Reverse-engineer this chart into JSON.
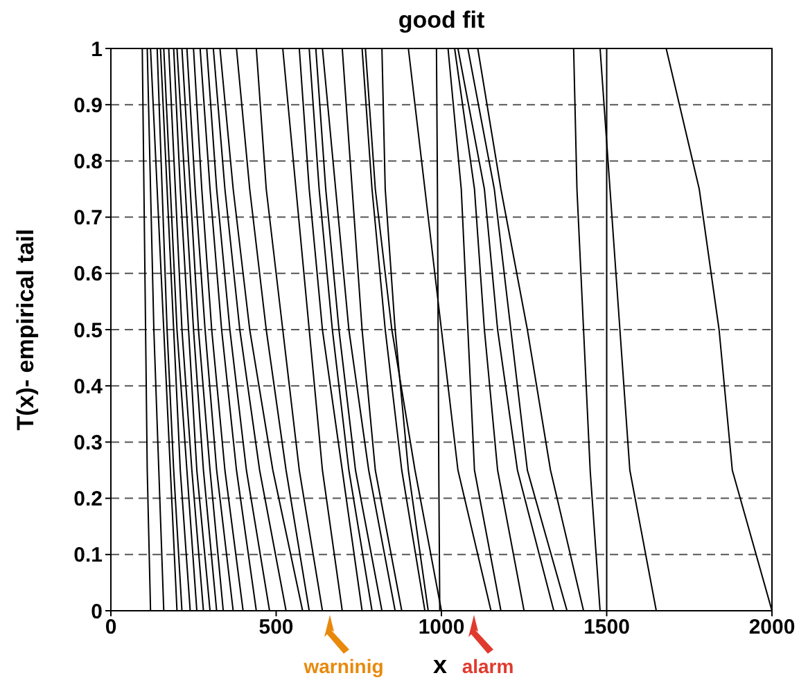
{
  "chart_data": {
    "type": "line",
    "title": "good fit",
    "xlabel": "x",
    "ylabel": "T(x)- empirical tail",
    "xlim": [
      0,
      2000
    ],
    "xticks": [
      0,
      500,
      1000,
      1500,
      2000
    ],
    "ylim": [
      0,
      1
    ],
    "yticks": [
      0,
      0.1,
      0.2,
      0.3,
      0.4,
      0.5,
      0.6,
      0.7,
      0.8,
      0.9,
      1
    ],
    "grid": "y",
    "line_style": "solid",
    "marker": "none",
    "annotations": [
      "warninig",
      "alarm"
    ],
    "series": [
      {
        "color": "#000000",
        "x": [
          95,
          100,
          105,
          110,
          120
        ],
        "values": [
          1,
          0.75,
          0.5,
          0.25,
          0
        ]
      },
      {
        "color": "#000000",
        "x": [
          110,
          120,
          130,
          145,
          160
        ],
        "values": [
          1,
          0.75,
          0.5,
          0.25,
          0
        ]
      },
      {
        "color": "#000000",
        "x": [
          120,
          140,
          160,
          180,
          200
        ],
        "values": [
          1,
          0.75,
          0.5,
          0.25,
          0
        ]
      },
      {
        "color": "#000000",
        "x": [
          140,
          155,
          170,
          190,
          215
        ],
        "values": [
          1,
          0.75,
          0.5,
          0.25,
          0
        ]
      },
      {
        "color": "#000000",
        "x": [
          150,
          170,
          190,
          210,
          240
        ],
        "values": [
          1,
          0.75,
          0.5,
          0.25,
          0
        ]
      },
      {
        "color": "#000000",
        "x": [
          160,
          180,
          200,
          230,
          260
        ],
        "values": [
          1,
          0.75,
          0.5,
          0.25,
          0
        ]
      },
      {
        "color": "#000000",
        "x": [
          175,
          195,
          215,
          245,
          280
        ],
        "values": [
          1,
          0.75,
          0.5,
          0.25,
          0
        ]
      },
      {
        "color": "#000000",
        "x": [
          190,
          210,
          235,
          260,
          300
        ],
        "values": [
          1,
          0.75,
          0.5,
          0.25,
          0
        ]
      },
      {
        "color": "#000000",
        "x": [
          200,
          225,
          250,
          280,
          320
        ],
        "values": [
          1,
          0.75,
          0.5,
          0.25,
          0
        ]
      },
      {
        "color": "#000000",
        "x": [
          215,
          240,
          265,
          300,
          340
        ],
        "values": [
          1,
          0.75,
          0.5,
          0.25,
          0
        ]
      },
      {
        "color": "#000000",
        "x": [
          230,
          255,
          285,
          320,
          370
        ],
        "values": [
          1,
          0.75,
          0.5,
          0.25,
          0
        ]
      },
      {
        "color": "#000000",
        "x": [
          250,
          275,
          305,
          345,
          400
        ],
        "values": [
          1,
          0.75,
          0.5,
          0.25,
          0
        ]
      },
      {
        "color": "#000000",
        "x": [
          270,
          300,
          335,
          380,
          440
        ],
        "values": [
          1,
          0.75,
          0.5,
          0.25,
          0
        ]
      },
      {
        "color": "#000000",
        "x": [
          290,
          320,
          360,
          410,
          480
        ],
        "values": [
          1,
          0.75,
          0.5,
          0.25,
          0
        ]
      },
      {
        "color": "#000000",
        "x": [
          310,
          345,
          390,
          450,
          530
        ],
        "values": [
          1,
          0.75,
          0.5,
          0.25,
          0
        ]
      },
      {
        "color": "#000000",
        "x": [
          330,
          370,
          420,
          490,
          580
        ],
        "values": [
          1,
          0.75,
          0.5,
          0.25,
          0
        ]
      },
      {
        "color": "#000000",
        "x": [
          380,
          420,
          470,
          530,
          600
        ],
        "values": [
          1,
          0.75,
          0.5,
          0.25,
          0
        ]
      },
      {
        "color": "#000000",
        "x": [
          440,
          470,
          520,
          570,
          640
        ],
        "values": [
          1,
          0.75,
          0.5,
          0.25,
          0
        ]
      },
      {
        "color": "#000000",
        "x": [
          520,
          560,
          600,
          640,
          700
        ],
        "values": [
          1,
          0.75,
          0.5,
          0.25,
          0
        ]
      },
      {
        "color": "#000000",
        "x": [
          570,
          600,
          640,
          700,
          760
        ],
        "values": [
          1,
          0.75,
          0.5,
          0.25,
          0
        ]
      },
      {
        "color": "#000000",
        "x": [
          600,
          630,
          670,
          720,
          790
        ],
        "values": [
          1,
          0.75,
          0.5,
          0.25,
          0
        ]
      },
      {
        "color": "#000000",
        "x": [
          620,
          650,
          690,
          740,
          820
        ],
        "values": [
          1,
          0.75,
          0.5,
          0.25,
          0
        ]
      },
      {
        "color": "#000000",
        "x": [
          640,
          680,
          720,
          780,
          860
        ],
        "values": [
          1,
          0.75,
          0.5,
          0.25,
          0
        ]
      },
      {
        "color": "#000000",
        "x": [
          700,
          730,
          760,
          800,
          880
        ],
        "values": [
          1,
          0.75,
          0.5,
          0.25,
          0
        ]
      },
      {
        "color": "#000000",
        "x": [
          760,
          790,
          830,
          880,
          950
        ],
        "values": [
          1,
          0.75,
          0.5,
          0.25,
          0
        ]
      },
      {
        "color": "#000000",
        "x": [
          770,
          800,
          850,
          920,
          1000
        ],
        "values": [
          1,
          0.75,
          0.5,
          0.25,
          0
        ]
      },
      {
        "color": "#000000",
        "x": [
          820,
          830,
          860,
          900,
          960
        ],
        "values": [
          1,
          0.75,
          0.5,
          0.25,
          0
        ]
      },
      {
        "color": "#000000",
        "x": [
          985,
          988,
          990,
          992,
          995
        ],
        "values": [
          1,
          0.75,
          0.5,
          0.25,
          0
        ]
      },
      {
        "color": "#000000",
        "x": [
          900,
          950,
          1000,
          1050,
          1150
        ],
        "values": [
          1,
          0.75,
          0.5,
          0.25,
          0
        ]
      },
      {
        "color": "#000000",
        "x": [
          1020,
          1060,
          1080,
          1100,
          1180
        ],
        "values": [
          1,
          0.75,
          0.5,
          0.25,
          0
        ]
      },
      {
        "color": "#000000",
        "x": [
          1040,
          1100,
          1130,
          1170,
          1250
        ],
        "values": [
          1,
          0.75,
          0.5,
          0.25,
          0
        ]
      },
      {
        "color": "#000000",
        "x": [
          1050,
          1130,
          1170,
          1230,
          1340
        ],
        "values": [
          1,
          0.75,
          0.5,
          0.25,
          0
        ]
      },
      {
        "color": "#000000",
        "x": [
          1080,
          1160,
          1210,
          1260,
          1380
        ],
        "values": [
          1,
          0.75,
          0.5,
          0.25,
          0
        ]
      },
      {
        "color": "#000000",
        "x": [
          1110,
          1180,
          1260,
          1330,
          1430
        ],
        "values": [
          1,
          0.75,
          0.5,
          0.25,
          0
        ]
      },
      {
        "color": "#000000",
        "x": [
          1400,
          1410,
          1430,
          1450,
          1480
        ],
        "values": [
          1,
          0.75,
          0.5,
          0.25,
          0
        ]
      },
      {
        "color": "#000000",
        "x": [
          1500,
          1500,
          1500,
          1500,
          1500
        ],
        "values": [
          1,
          0.75,
          0.5,
          0.25,
          0
        ]
      },
      {
        "color": "#000000",
        "x": [
          1480,
          1510,
          1540,
          1570,
          1650
        ],
        "values": [
          1,
          0.75,
          0.5,
          0.25,
          0
        ]
      },
      {
        "color": "#000000",
        "x": [
          1680,
          1780,
          1840,
          1880,
          2000
        ],
        "values": [
          1,
          0.75,
          0.5,
          0.25,
          0
        ]
      }
    ]
  }
}
